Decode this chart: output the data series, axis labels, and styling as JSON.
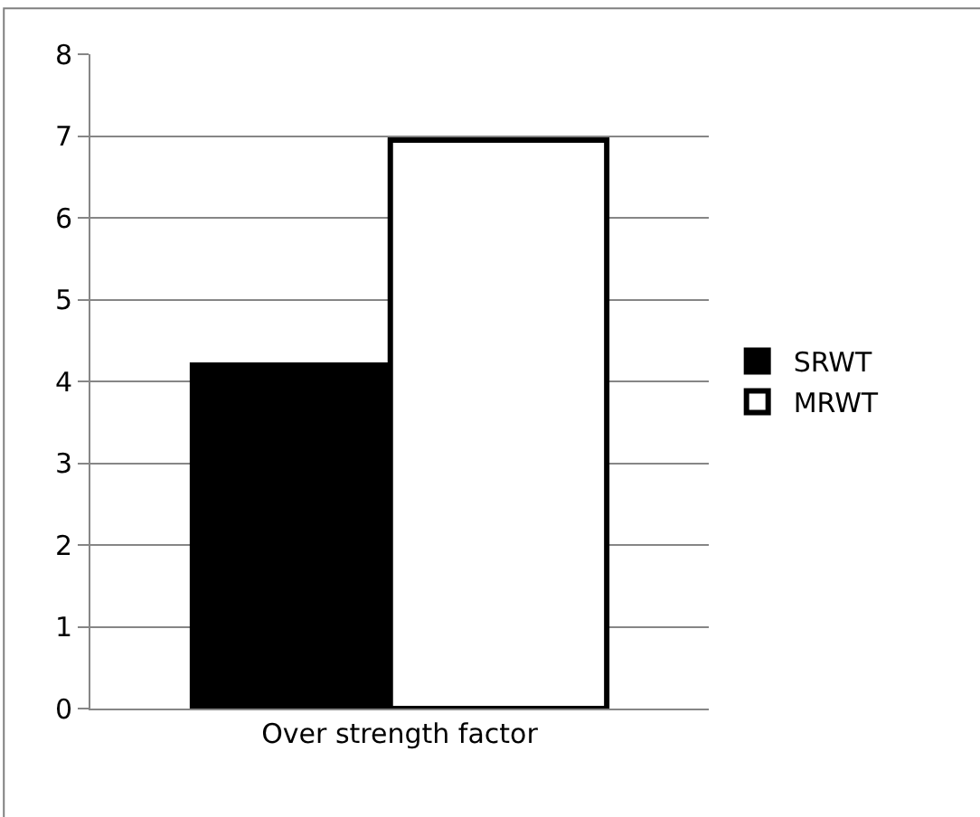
{
  "chart_data": {
    "type": "bar",
    "categories": [
      "Over strength factor"
    ],
    "series": [
      {
        "name": "SRWT",
        "color": "#000000",
        "values": [
          4.2
        ]
      },
      {
        "name": "MRWT",
        "color": "#ffffff",
        "values": [
          6.95
        ]
      }
    ],
    "ylim": [
      0,
      8
    ],
    "yticks": [
      0,
      1,
      2,
      3,
      4,
      5,
      6,
      7,
      8
    ],
    "grid": "y",
    "legend": "right"
  }
}
